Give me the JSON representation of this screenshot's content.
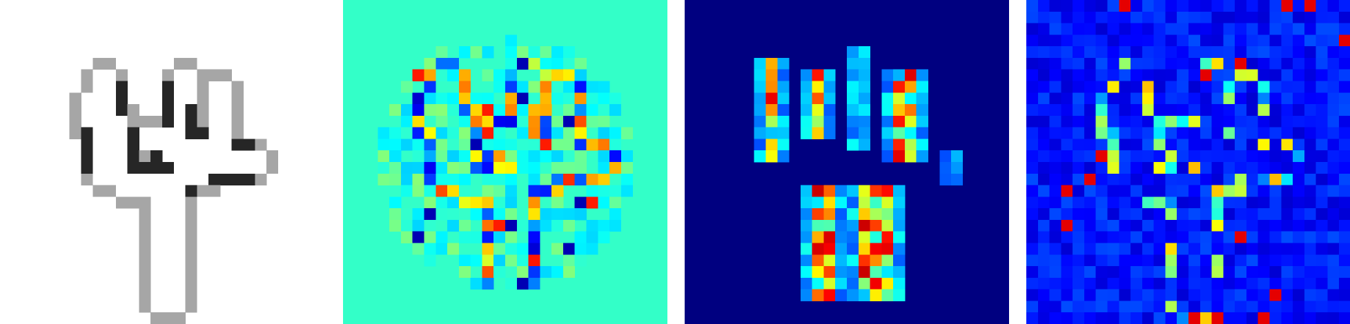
{
  "panels": [
    {
      "name": "input-digit-image",
      "colormap": "gray-inverted",
      "background": "#ffffff"
    },
    {
      "name": "saliency-map-diverging",
      "colormap": "jet",
      "background": "#33ffc8"
    },
    {
      "name": "sparse-attribution-map",
      "colormap": "jet",
      "background": "#000080"
    },
    {
      "name": "noisy-attribution-map",
      "colormap": "jet",
      "background": "#0000a0"
    }
  ],
  "grid": 28
}
